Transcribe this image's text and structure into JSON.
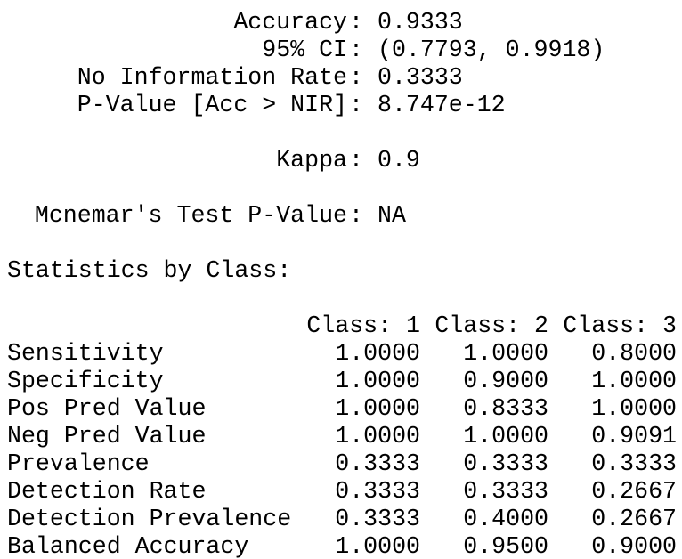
{
  "separator": ":",
  "overall": [
    {
      "label": "Accuracy",
      "value": "0.9333"
    },
    {
      "label": "95% CI",
      "value": "(0.7793, 0.9918)"
    },
    {
      "label": "No Information Rate",
      "value": "0.3333"
    },
    {
      "label": "P-Value [Acc > NIR]",
      "value": "8.747e-12"
    },
    {
      "label": "Kappa",
      "value": "0.9"
    },
    {
      "label": "Mcnemar's Test P-Value",
      "value": "NA"
    }
  ],
  "section_title": "Statistics by Class:",
  "table": {
    "columns": [
      "Class: 1",
      "Class: 2",
      "Class: 3"
    ],
    "rows": [
      [
        "Sensitivity",
        "1.0000",
        "1.0000",
        "0.8000"
      ],
      [
        "Specificity",
        "1.0000",
        "0.9000",
        "1.0000"
      ],
      [
        "Pos Pred Value",
        "1.0000",
        "0.8333",
        "1.0000"
      ],
      [
        "Neg Pred Value",
        "1.0000",
        "1.0000",
        "0.9091"
      ],
      [
        "Prevalence",
        "0.3333",
        "0.3333",
        "0.3333"
      ],
      [
        "Detection Rate",
        "0.3333",
        "0.3333",
        "0.2667"
      ],
      [
        "Detection Prevalence",
        "0.3333",
        "0.4000",
        "0.2667"
      ],
      [
        "Balanced Accuracy",
        "1.0000",
        "0.9500",
        "0.9000"
      ]
    ]
  }
}
